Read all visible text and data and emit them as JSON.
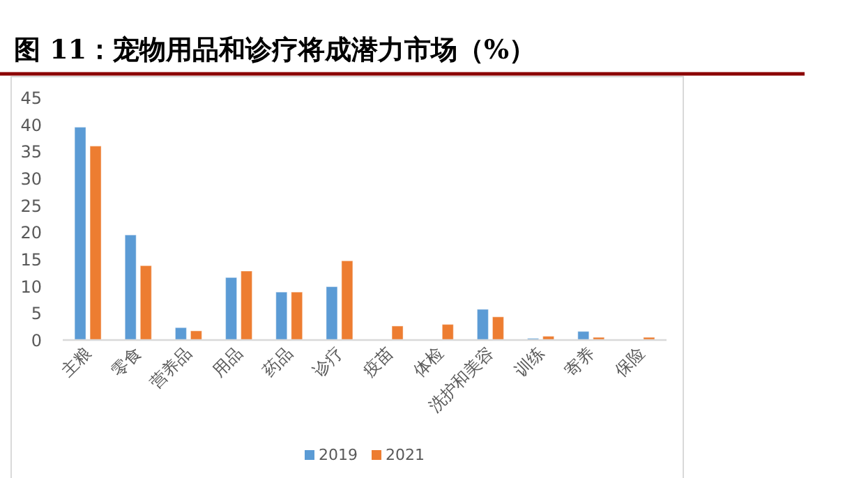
{
  "chart_data": {
    "type": "bar",
    "title": "图 11：宠物用品和诊疗将成潜力市场（%）",
    "categories": [
      "主粮",
      "零食",
      "营养品",
      "用品",
      "药品",
      "诊疗",
      "疫苗",
      "体检",
      "洗护和美容",
      "训练",
      "寄养",
      "保险"
    ],
    "series": [
      {
        "name": "2019",
        "color": "#5b9bd5",
        "values": [
          39.5,
          19.5,
          2.3,
          11.6,
          8.9,
          9.9,
          null,
          null,
          5.7,
          0.3,
          1.6,
          null
        ]
      },
      {
        "name": "2021",
        "color": "#ed7d31",
        "values": [
          36,
          13.8,
          1.7,
          12.8,
          8.9,
          14.7,
          2.6,
          2.9,
          4.3,
          0.7,
          0.5,
          0.5
        ]
      }
    ],
    "ylim": [
      0,
      45
    ],
    "yticks": [
      0,
      5,
      10,
      15,
      20,
      25,
      30,
      35,
      40,
      45
    ],
    "grid": false,
    "legend": "bottom"
  }
}
